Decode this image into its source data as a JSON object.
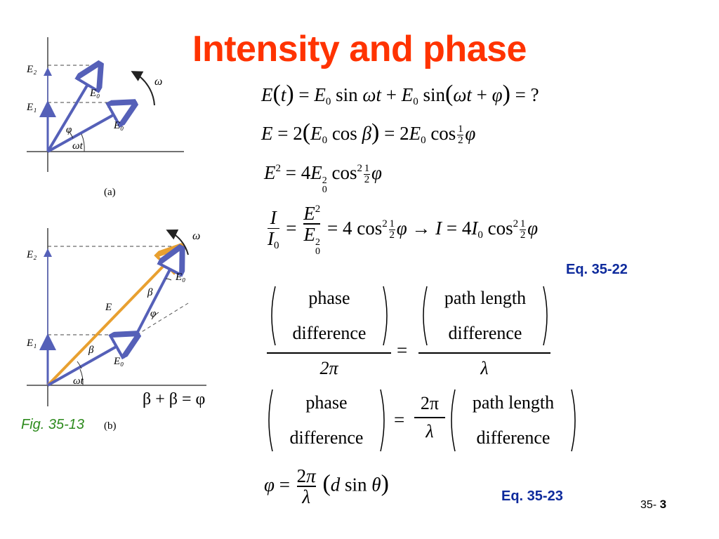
{
  "slide": {
    "title": "Intensity and phase",
    "fig_caption": "Fig. 35-13",
    "eq_label_1": "Eq. 35-22",
    "eq_label_2": "Eq. 35-23",
    "page_prefix": "35-",
    "page_number": "3"
  },
  "figure_a": {
    "panel_label": "(a)",
    "labels": {
      "E2": "E₂",
      "E1": "E₁",
      "E0_top": "E₀",
      "E0_low": "E₀",
      "phi": "φ",
      "omega_t": "ωt",
      "omega": "ω"
    }
  },
  "figure_b": {
    "panel_label": "(b)",
    "labels": {
      "E2": "E₂",
      "E1": "E₁",
      "E0_top": "E₀",
      "E0_low": "E₀",
      "E": "E",
      "beta1": "β",
      "beta2": "β",
      "phi": "φ",
      "omega_t": "ωt",
      "omega": "ω"
    },
    "relation": "β + β = φ"
  },
  "equations": {
    "phase": "phase",
    "difference": "difference",
    "path_length": "path length",
    "two_pi": "2π",
    "lambda": "λ"
  },
  "colors": {
    "title": "#ff3300",
    "eq_label": "#0d2a9c",
    "fig_caption": "#2e8b1e",
    "phasor": "#5560b8",
    "resultant": "#e8a030"
  }
}
